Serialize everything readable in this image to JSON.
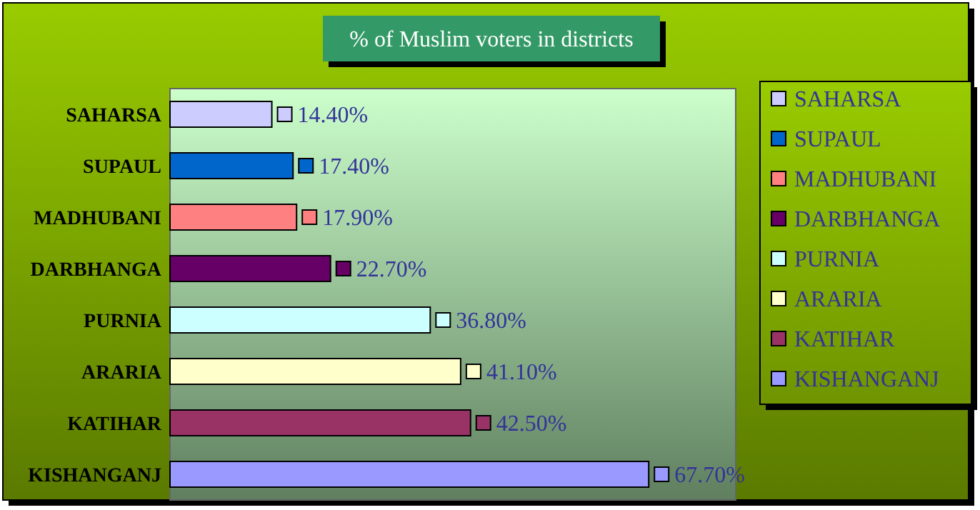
{
  "chart_data": {
    "type": "bar",
    "orientation": "horizontal",
    "title": "% of Muslim voters in districts",
    "categories": [
      "SAHARSA",
      "SUPAUL",
      "MADHUBANI",
      "DARBHANGA",
      "PURNIA",
      "ARARIA",
      "KATIHAR",
      "KISHANGANJ"
    ],
    "series": [
      {
        "name": "SAHARSA",
        "color": "#ccccff",
        "values": [
          14.4,
          null,
          null,
          null,
          null,
          null,
          null,
          null
        ],
        "value_labels": [
          "14.40%",
          null,
          null,
          null,
          null,
          null,
          null,
          null
        ]
      },
      {
        "name": "SUPAUL",
        "color": "#0066cc",
        "values": [
          null,
          17.4,
          null,
          null,
          null,
          null,
          null,
          null
        ],
        "value_labels": [
          null,
          "17.40%",
          null,
          null,
          null,
          null,
          null,
          null
        ]
      },
      {
        "name": "MADHUBANI",
        "color": "#ff8080",
        "values": [
          null,
          null,
          17.9,
          null,
          null,
          null,
          null,
          null
        ],
        "value_labels": [
          null,
          null,
          "17.90%",
          null,
          null,
          null,
          null,
          null
        ]
      },
      {
        "name": "DARBHANGA",
        "color": "#660066",
        "values": [
          null,
          null,
          null,
          22.7,
          null,
          null,
          null,
          null
        ],
        "value_labels": [
          null,
          null,
          null,
          "22.70%",
          null,
          null,
          null,
          null
        ]
      },
      {
        "name": "PURNIA",
        "color": "#ccffff",
        "values": [
          null,
          null,
          null,
          null,
          36.8,
          null,
          null,
          null
        ],
        "value_labels": [
          null,
          null,
          null,
          null,
          "36.80%",
          null,
          null,
          null
        ]
      },
      {
        "name": "ARARIA",
        "color": "#ffffcc",
        "values": [
          null,
          null,
          null,
          null,
          null,
          41.1,
          null,
          null
        ],
        "value_labels": [
          null,
          null,
          null,
          null,
          null,
          "41.10%",
          null,
          null
        ]
      },
      {
        "name": "KATIHAR",
        "color": "#993366",
        "values": [
          null,
          null,
          null,
          null,
          null,
          null,
          42.5,
          null
        ],
        "value_labels": [
          null,
          null,
          null,
          null,
          null,
          null,
          "42.50%",
          null
        ]
      },
      {
        "name": "KISHANGANJ",
        "color": "#9999ff",
        "values": [
          null,
          null,
          null,
          null,
          null,
          null,
          null,
          67.7
        ],
        "value_labels": [
          null,
          null,
          null,
          null,
          null,
          null,
          null,
          "67.70%"
        ]
      }
    ],
    "xlim": [
      0,
      80
    ],
    "legend": "right"
  }
}
